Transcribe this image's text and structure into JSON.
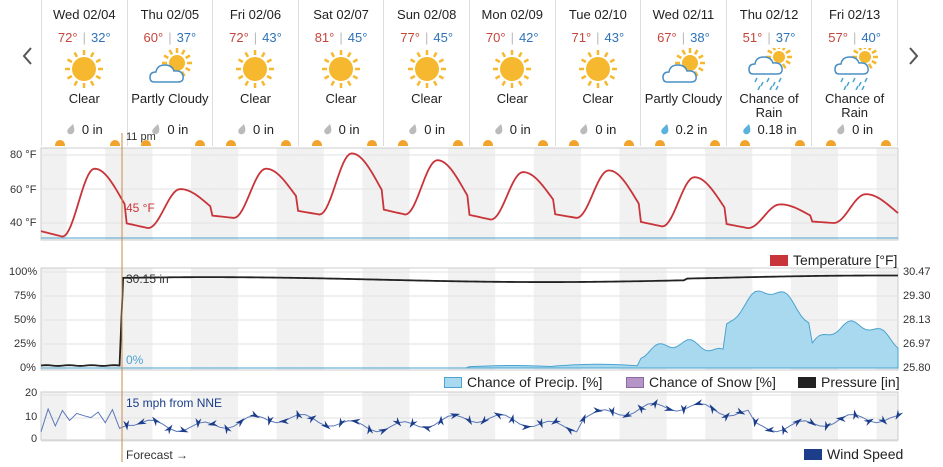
{
  "forecast_days": [
    {
      "date": "Wed 02/04",
      "hi": "72°",
      "lo": "32°",
      "icon": "sun",
      "condition": "Clear",
      "precip": "0 in"
    },
    {
      "date": "Thu 02/05",
      "hi": "60°",
      "lo": "37°",
      "icon": "partly-cloudy",
      "condition": "Partly Cloudy",
      "precip": "0 in"
    },
    {
      "date": "Fri 02/06",
      "hi": "72°",
      "lo": "43°",
      "icon": "sun",
      "condition": "Clear",
      "precip": "0 in"
    },
    {
      "date": "Sat 02/07",
      "hi": "81°",
      "lo": "45°",
      "icon": "sun",
      "condition": "Clear",
      "precip": "0 in"
    },
    {
      "date": "Sun 02/08",
      "hi": "77°",
      "lo": "45°",
      "icon": "sun",
      "condition": "Clear",
      "precip": "0 in"
    },
    {
      "date": "Mon 02/09",
      "hi": "70°",
      "lo": "42°",
      "icon": "sun",
      "condition": "Clear",
      "precip": "0 in"
    },
    {
      "date": "Tue 02/10",
      "hi": "71°",
      "lo": "43°",
      "icon": "sun",
      "condition": "Clear",
      "precip": "0 in"
    },
    {
      "date": "Wed 02/11",
      "hi": "67°",
      "lo": "38°",
      "icon": "partly-cloudy",
      "condition": "Partly Cloudy",
      "precip": "0.2 in"
    },
    {
      "date": "Thu 02/12",
      "hi": "51°",
      "lo": "37°",
      "icon": "rain",
      "condition": "Chance of Rain",
      "precip": "0.18 in"
    },
    {
      "date": "Fri 02/13",
      "hi": "57°",
      "lo": "40°",
      "icon": "rain",
      "condition": "Chance of Rain",
      "precip": "0 in"
    }
  ],
  "current_time_label": "11 pm",
  "current_temp_label": "45 °F",
  "current_pressure_label": "30.15 in",
  "current_precip_label": "0%",
  "current_wind_label": "15 mph from NNE",
  "forecast_label": "Forecast →",
  "temp_axis": [
    "80 °F",
    "60 °F",
    "40 °F"
  ],
  "pct_axis": [
    "100%",
    "75%",
    "50%",
    "25%",
    "0%"
  ],
  "pressure_axis": [
    "30.47",
    "29.30",
    "28.13",
    "26.97",
    "25.80"
  ],
  "wind_axis": [
    "20",
    "10",
    "0"
  ],
  "legends": {
    "temperature": "Temperature [°F]",
    "precip_chance": "Chance of Precip. [%]",
    "snow_chance": "Chance of Snow [%]",
    "pressure": "Pressure [in]",
    "wind_speed": "Wind Speed"
  },
  "colors": {
    "temperature": "#c8343a",
    "precip": "#a9d9ef",
    "precip_line": "#4aa3d0",
    "snow": "#b594c8",
    "pressure": "#222222",
    "wind": "#1b3d8a",
    "now_line": "#c98a4a",
    "sun": "#f5b82e"
  },
  "chart_data": {
    "temperature_hi_lo": [
      [
        72,
        32
      ],
      [
        60,
        37
      ],
      [
        72,
        43
      ],
      [
        81,
        45
      ],
      [
        77,
        45
      ],
      [
        70,
        42
      ],
      [
        71,
        43
      ],
      [
        67,
        38
      ],
      [
        51,
        37
      ],
      [
        57,
        40
      ]
    ],
    "temperature_range": [
      30,
      83
    ],
    "pressure_range": [
      25.8,
      30.47
    ],
    "pressure_current": 30.15,
    "precip_chance_pct_by_day": [
      0,
      0,
      0,
      0,
      0,
      2,
      3,
      20,
      62,
      35
    ],
    "wind_range": [
      0,
      20
    ],
    "wind_current_mph": 15
  }
}
